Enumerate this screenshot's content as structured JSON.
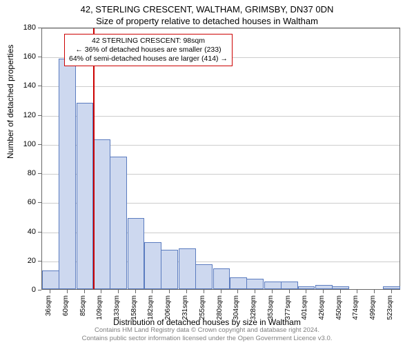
{
  "title_main": "42, STERLING CRESCENT, WALTHAM, GRIMSBY, DN37 0DN",
  "title_sub": "Size of property relative to detached houses in Waltham",
  "y_axis_label": "Number of detached properties",
  "x_axis_label": "Distribution of detached houses by size in Waltham",
  "footer_line1": "Contains HM Land Registry data © Crown copyright and database right 2024.",
  "footer_line2": "Contains public sector information licensed under the Open Government Licence v3.0.",
  "annotation": {
    "line1": "42 STERLING CRESCENT: 98sqm",
    "line2": "← 36% of detached houses are smaller (233)",
    "line3": "64% of semi-detached houses are larger (414) →"
  },
  "chart": {
    "type": "histogram",
    "background_color": "#ffffff",
    "grid_color": "#cccccc",
    "bar_fill": "#cdd8ef",
    "bar_border": "#5a7bbf",
    "marker_color": "#cc0000",
    "marker_x_value": 98,
    "annotation_border": "#cc0000",
    "ylim": [
      0,
      180
    ],
    "ytick_step": 20,
    "y_ticks": [
      0,
      20,
      40,
      60,
      80,
      100,
      120,
      140,
      160,
      180
    ],
    "x_min": 24,
    "x_max": 536,
    "x_tick_labels": [
      "36sqm",
      "60sqm",
      "85sqm",
      "109sqm",
      "133sqm",
      "158sqm",
      "182sqm",
      "206sqm",
      "231sqm",
      "255sqm",
      "280sqm",
      "304sqm",
      "328sqm",
      "353sqm",
      "377sqm",
      "401sqm",
      "426sqm",
      "450sqm",
      "474sqm",
      "499sqm",
      "523sqm"
    ],
    "x_tick_positions": [
      36,
      60,
      85,
      109,
      133,
      158,
      182,
      206,
      231,
      255,
      280,
      304,
      328,
      353,
      377,
      401,
      426,
      450,
      474,
      499,
      523
    ],
    "bar_width_value": 24.4,
    "bars": [
      {
        "x": 36,
        "y": 13
      },
      {
        "x": 60,
        "y": 158
      },
      {
        "x": 85,
        "y": 128
      },
      {
        "x": 109,
        "y": 103
      },
      {
        "x": 133,
        "y": 91
      },
      {
        "x": 158,
        "y": 49
      },
      {
        "x": 182,
        "y": 32
      },
      {
        "x": 206,
        "y": 27
      },
      {
        "x": 231,
        "y": 28
      },
      {
        "x": 255,
        "y": 17
      },
      {
        "x": 280,
        "y": 14
      },
      {
        "x": 304,
        "y": 8
      },
      {
        "x": 328,
        "y": 7
      },
      {
        "x": 353,
        "y": 5
      },
      {
        "x": 377,
        "y": 5
      },
      {
        "x": 401,
        "y": 2
      },
      {
        "x": 426,
        "y": 3
      },
      {
        "x": 450,
        "y": 2
      },
      {
        "x": 474,
        "y": 0
      },
      {
        "x": 499,
        "y": 0
      },
      {
        "x": 523,
        "y": 2
      }
    ],
    "title_fontsize": 13,
    "label_fontsize": 12,
    "tick_fontsize": 11,
    "footer_fontsize": 9.5,
    "annotation_fontsize": 10.5
  }
}
